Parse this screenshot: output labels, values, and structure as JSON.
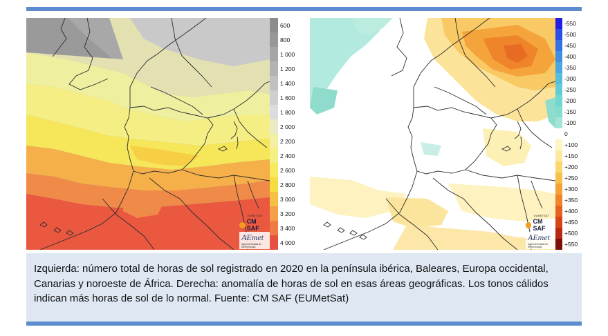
{
  "left_map": {
    "legend_labels": [
      "600",
      "800",
      "1 000",
      "1 200",
      "1 400",
      "1 600",
      "1 800",
      "2 000",
      "2 200",
      "2 400",
      "2 600",
      "2 800",
      "3 000",
      "3 200",
      "3 400",
      "4 000"
    ],
    "legend_colors": [
      "#8c8c8c",
      "#989898",
      "#a6a6a6",
      "#b3b3b3",
      "#c1c1c1",
      "#cfcfcf",
      "#dcdcdc",
      "#eceac4",
      "#f3f0a6",
      "#f6ef84",
      "#f6ea5e",
      "#f7dc3f",
      "#f6c043",
      "#f3a046",
      "#ef7a45",
      "#e8513f"
    ],
    "logo_cmsaf": "CM SAF",
    "logo_eumetsat": "EUMETSAT",
    "logo_aemet": "AEmet",
    "logo_aemet_sub": "Agencia Estatal de Meteorología"
  },
  "right_map": {
    "legend_labels": [
      "-550",
      "-500",
      "-450",
      "-400",
      "-350",
      "-300",
      "-250",
      "-200",
      "-150",
      "-100",
      "0",
      "+100",
      "+150",
      "+200",
      "+250",
      "+300",
      "+350",
      "+400",
      "+450",
      "+500",
      "+550"
    ],
    "legend_colors": [
      "#1f1fe6",
      "#2a4ee8",
      "#3470e6",
      "#3f8fe3",
      "#4aa8e0",
      "#55bedd",
      "#61ccd8",
      "#6fd6d1",
      "#83ddcc",
      "#a2e5d6",
      "#ffffff",
      "#fdf5c4",
      "#fbe9a0",
      "#fad86e",
      "#f7c14a",
      "#f4a236",
      "#ef842a",
      "#e6631f",
      "#d74418",
      "#b82912",
      "#7d0f0a"
    ],
    "logo_cmsaf": "CM SAF",
    "logo_eumetsat": "EUMETSAT",
    "logo_aemet": "AEmet",
    "logo_aemet_sub": "Agencia Estatal de Meteorología"
  },
  "caption": "Izquierda: número total de horas de sol registrado en 2020 en la península ibérica, Baleares, Europa occidental, Canarias y noroeste de África. Derecha: anomalía de horas de sol en esas áreas geográficas. Los tonos cálidos indican más horas de sol de lo normal. Fuente: CM SAF (EUMetSat)",
  "colors": {
    "accent_bar": "#5b8ccf",
    "caption_bg": "#dfe7f2"
  }
}
